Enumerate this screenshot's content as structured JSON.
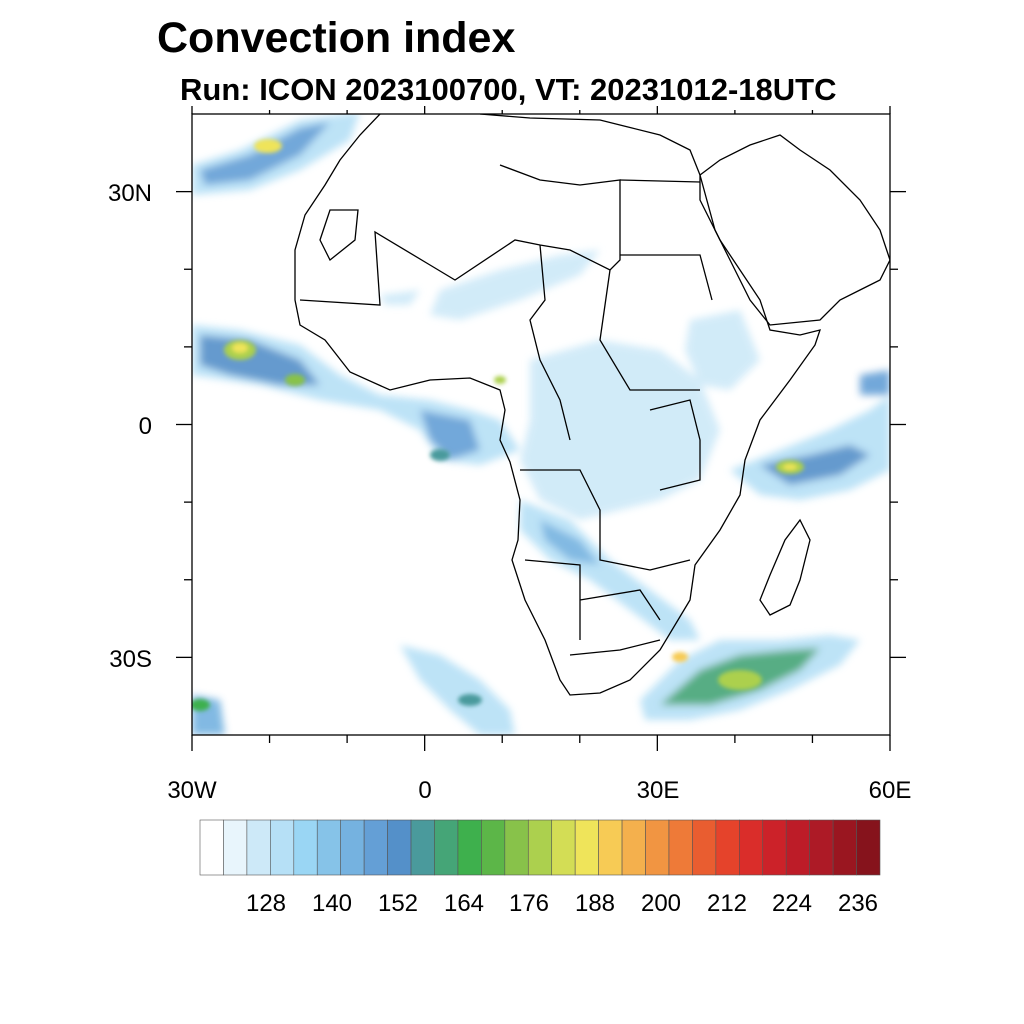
{
  "title": "Convection index",
  "subtitle": "Run: ICON 2023100700,  VT: 20231012-18UTC",
  "map": {
    "region": "Africa",
    "lon_range": [
      -30,
      60
    ],
    "lat_range": [
      -40,
      40
    ],
    "lat_tick_labels": [
      "30N",
      "0",
      "30S"
    ],
    "lon_tick_labels": [
      "30W",
      "0",
      "30E",
      "60E"
    ]
  },
  "colorbar": {
    "tick_labels": [
      "128",
      "140",
      "152",
      "164",
      "176",
      "188",
      "200",
      "212",
      "224",
      "236"
    ],
    "colors": [
      "#ffffff",
      "#e8f5fc",
      "#cde9f8",
      "#b6e0f6",
      "#9ad6f4",
      "#86c3e8",
      "#75b2e0",
      "#649fd6",
      "#5490c9",
      "#4a9a9c",
      "#45a577",
      "#3eb04d",
      "#5cb648",
      "#88c24a",
      "#acd04e",
      "#d3dd55",
      "#efe45a",
      "#f7cb55",
      "#f4b04d",
      "#f19542",
      "#ee7a38",
      "#e95d30",
      "#e5432b",
      "#da2d2a",
      "#cc2229",
      "#bd1c28",
      "#ad1a26",
      "#9a1620",
      "#86131c"
    ]
  }
}
